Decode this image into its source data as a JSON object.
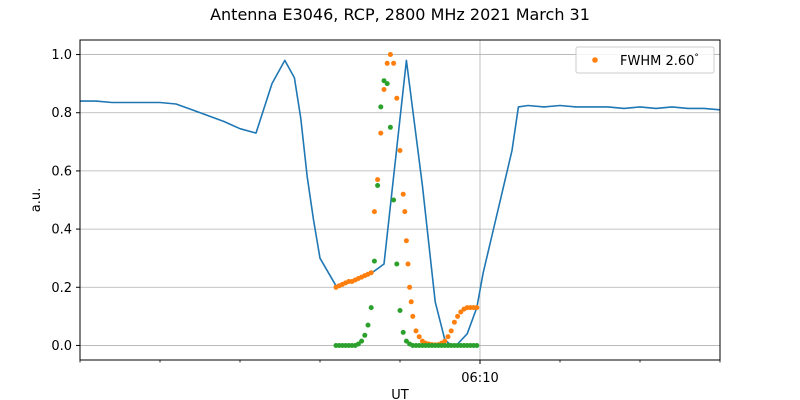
{
  "chart_data": {
    "type": "line",
    "title": "Antenna E3046, RCP, 2800 MHz 2021 March 31",
    "xlabel": "UT",
    "ylabel": "a.u.",
    "x_unit": "minutes UT",
    "xlim": [
      357.5,
      377.5
    ],
    "ylim": [
      -0.05,
      1.05
    ],
    "grid": true,
    "x_major_ticks": [
      {
        "x": 370,
        "label": "06:10"
      }
    ],
    "x_minor_ticks": [
      357.5,
      360,
      362.5,
      365,
      367.5,
      372.5,
      375,
      377.5
    ],
    "y_ticks": [
      0.0,
      0.2,
      0.4,
      0.6,
      0.8,
      1.0
    ],
    "y_tick_labels": [
      "0.0",
      "0.2",
      "0.4",
      "0.6",
      "0.8",
      "1.0"
    ],
    "legend": {
      "position": "top-right",
      "entries": [
        "FWHM 2.60$^\\circ$"
      ],
      "rendered": [
        "FWHM 2.60",
        "°"
      ]
    },
    "colors": {
      "measured": "#1f77b4",
      "fwhm": "#ff7f0e",
      "fit": "#2ca02c",
      "grid": "#b0b0b0"
    },
    "series": [
      {
        "kind": "line",
        "color": "#1f77b4",
        "x": [
          357.5,
          358.0,
          358.5,
          359.0,
          359.5,
          360.0,
          360.5,
          361.0,
          361.5,
          362.0,
          362.5,
          363.0,
          363.5,
          363.9,
          364.2,
          364.4,
          364.6,
          364.8,
          365.0,
          365.5,
          366.0,
          366.5,
          367.0,
          367.7,
          368.2,
          368.6,
          368.9,
          369.1,
          369.3,
          369.6,
          369.9,
          370.1,
          370.4,
          370.7,
          371.0,
          371.2,
          371.5,
          372.0,
          372.5,
          373.0,
          373.5,
          374.0,
          374.5,
          375.0,
          375.5,
          376.0,
          376.5,
          377.0,
          377.5
        ],
        "y": [
          0.84,
          0.84,
          0.835,
          0.835,
          0.835,
          0.835,
          0.83,
          0.81,
          0.79,
          0.77,
          0.745,
          0.73,
          0.9,
          0.98,
          0.92,
          0.78,
          0.58,
          0.43,
          0.3,
          0.205,
          0.22,
          0.24,
          0.28,
          0.98,
          0.55,
          0.15,
          0.02,
          0.0,
          0.005,
          0.04,
          0.13,
          0.25,
          0.39,
          0.53,
          0.67,
          0.82,
          0.825,
          0.82,
          0.825,
          0.82,
          0.82,
          0.82,
          0.815,
          0.82,
          0.815,
          0.82,
          0.815,
          0.815,
          0.81
        ]
      },
      {
        "kind": "points",
        "color": "#ff7f0e",
        "x": [
          365.5,
          365.6,
          365.7,
          365.8,
          365.9,
          366.0,
          366.1,
          366.2,
          366.3,
          366.4,
          366.5,
          366.6,
          366.7,
          366.8,
          366.9,
          367.0,
          367.1,
          367.2,
          367.3,
          367.4,
          367.5,
          367.6,
          367.65,
          367.7,
          367.75,
          367.8,
          367.85,
          367.9,
          368.0,
          368.1,
          368.2,
          368.3,
          368.4,
          368.5,
          368.6,
          368.7,
          368.8,
          368.9,
          369.0,
          369.1,
          369.2,
          369.3,
          369.4,
          369.5,
          369.6,
          369.7,
          369.8,
          369.9
        ],
        "y": [
          0.2,
          0.205,
          0.21,
          0.215,
          0.22,
          0.22,
          0.225,
          0.23,
          0.235,
          0.24,
          0.245,
          0.25,
          0.46,
          0.57,
          0.73,
          0.88,
          0.97,
          1.0,
          0.97,
          0.85,
          0.67,
          0.52,
          0.46,
          0.36,
          0.28,
          0.2,
          0.15,
          0.1,
          0.05,
          0.03,
          0.015,
          0.008,
          0.005,
          0.003,
          0.002,
          0.003,
          0.008,
          0.015,
          0.03,
          0.05,
          0.08,
          0.1,
          0.115,
          0.125,
          0.13,
          0.13,
          0.13,
          0.13
        ]
      },
      {
        "kind": "points",
        "color": "#2ca02c",
        "x": [
          365.5,
          365.6,
          365.7,
          365.8,
          365.9,
          366.0,
          366.1,
          366.2,
          366.3,
          366.4,
          366.5,
          366.6,
          366.7,
          366.8,
          366.9,
          367.0,
          367.1,
          367.2,
          367.3,
          367.4,
          367.5,
          367.6,
          367.7,
          367.8,
          367.9,
          368.0,
          368.1,
          368.2,
          368.3,
          368.4,
          368.5,
          368.6,
          368.7,
          368.8,
          368.9,
          369.0,
          369.1,
          369.2,
          369.3,
          369.4,
          369.5,
          369.6,
          369.7,
          369.8,
          369.9
        ],
        "y": [
          0.0,
          0.0,
          0.0,
          0.0,
          0.0,
          0.0,
          0.0,
          0.005,
          0.015,
          0.035,
          0.07,
          0.13,
          0.29,
          0.55,
          0.82,
          0.91,
          0.9,
          0.75,
          0.5,
          0.28,
          0.12,
          0.045,
          0.015,
          0.005,
          0.0,
          0.0,
          0.0,
          0.0,
          0.0,
          0.0,
          0.0,
          0.0,
          0.0,
          0.0,
          0.0,
          0.0,
          0.0,
          0.0,
          0.0,
          0.0,
          0.0,
          0.0,
          0.0,
          0.0,
          0.0
        ]
      }
    ]
  }
}
